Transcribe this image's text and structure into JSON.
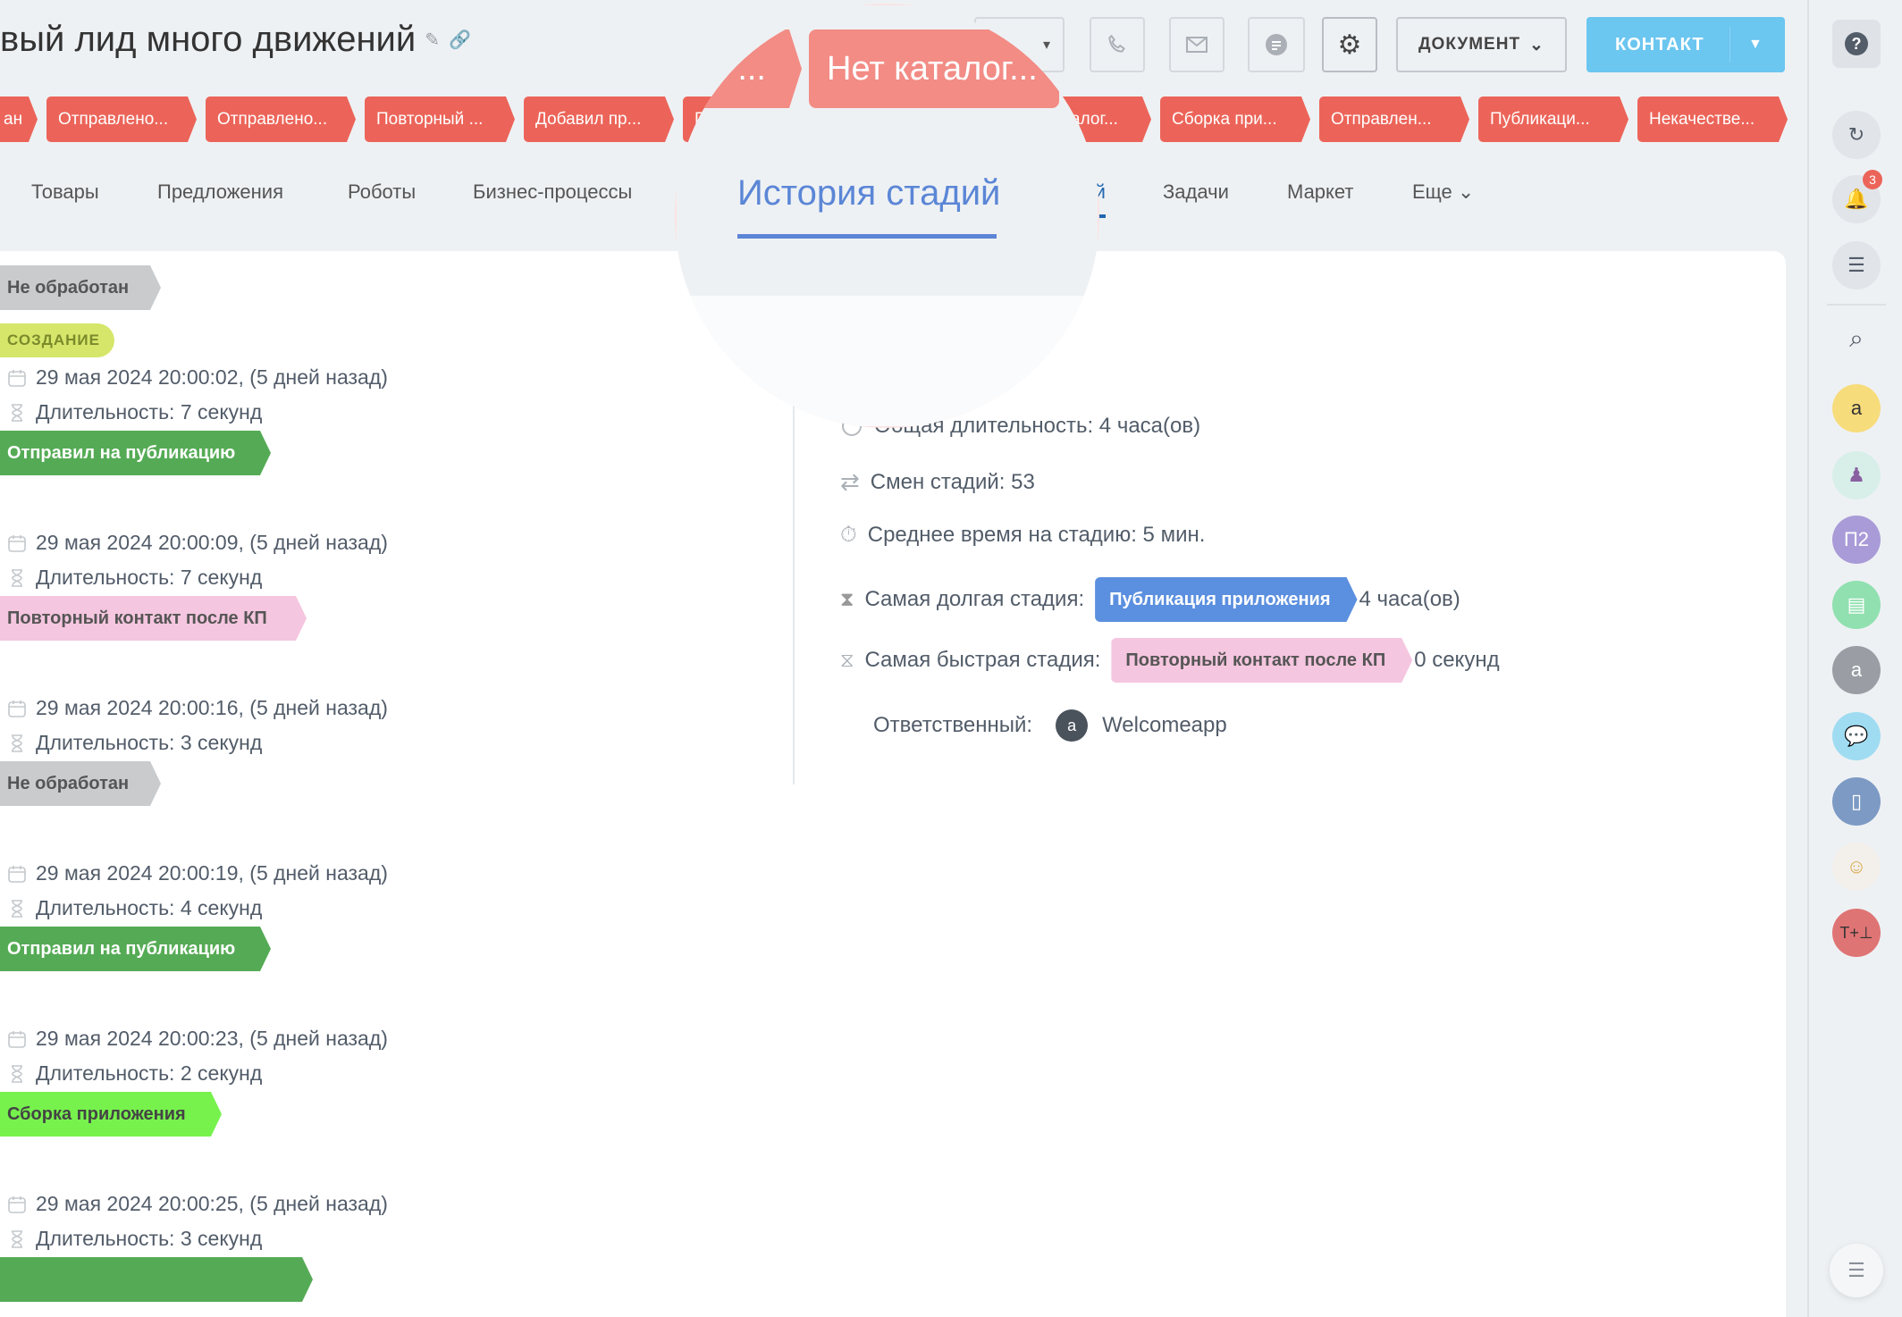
{
  "header": {
    "title": "вый лид много движений",
    "document_label": "ДОКУМЕНТ",
    "contact_label": "КОНТАКТ"
  },
  "stages": [
    "ан",
    "Отправлено...",
    "Отправлено...",
    "Повторный ...",
    "Добавил пр...",
    "П...",
    "...",
    "Нет каталог...",
    "Сборка при...",
    "Отправлен...",
    "Публикаци...",
    "Некачестве..."
  ],
  "stage_color": "#ec6459",
  "tabs": [
    "Товары",
    "Предложения",
    "Роботы",
    "Бизнес-процессы",
    "История стадий",
    "Задачи",
    "Маркет",
    "Еще"
  ],
  "active_tab": "История стадий",
  "magnifier": {
    "pill_left": "...",
    "pill_right": "Нет каталог...",
    "tab": "История стадий"
  },
  "timeline": [
    {
      "stage": "Не обработан",
      "badge": "СОЗДАНИЕ",
      "date": "29 мая 2024 20:00:02, (5 дней назад)",
      "duration": "Длительность: 7 секунд",
      "bg": "#c9cbcd",
      "fg": "#555555"
    },
    {
      "stage": "Отправил на публикацию",
      "date": "29 мая 2024 20:00:09, (5 дней назад)",
      "duration": "Длительность: 7 секунд",
      "bg": "#55ab55",
      "fg": "#ffffff"
    },
    {
      "stage": "Повторный контакт после КП",
      "date": "29 мая 2024 20:00:16, (5 дней назад)",
      "duration": "Длительность: 3 секунд",
      "bg": "#f5c6df",
      "fg": "#555555"
    },
    {
      "stage": "Не обработан",
      "date": "29 мая 2024 20:00:19, (5 дней назад)",
      "duration": "Длительность: 4 секунд",
      "bg": "#c9cbcd",
      "fg": "#555555"
    },
    {
      "stage": "Отправил на публикацию",
      "date": "29 мая 2024 20:00:23, (5 дней назад)",
      "duration": "Длительность: 2 секунд",
      "bg": "#55ab55",
      "fg": "#ffffff"
    },
    {
      "stage": "Сборка приложения",
      "date": "29 мая 2024 20:00:25, (5 дней назад)",
      "duration": "Длительность: 3 секунд",
      "bg": "#77f24d",
      "fg": "#444444"
    },
    {
      "stage": "",
      "bg": "#55ab55",
      "fg": "#ffffff"
    }
  ],
  "stats": {
    "total": "Общая длительность: 4 часа(ов)",
    "changes": "Смен стадий: 53",
    "avg": "Среднее время на стадию: 5 мин.",
    "longest_label": "Самая долгая стадия:",
    "longest_stage": "Публикация приложения",
    "longest_value": "4 часа(ов)",
    "fastest_label": "Самая быстрая стадия:",
    "fastest_stage": "Повторный контакт после КП",
    "fastest_value": "0 секунд",
    "responsible_label": "Ответственный:",
    "responsible_name": "Welcomeapp"
  },
  "sidebar": {
    "notifications": "3",
    "avatar_p2": "П2"
  }
}
